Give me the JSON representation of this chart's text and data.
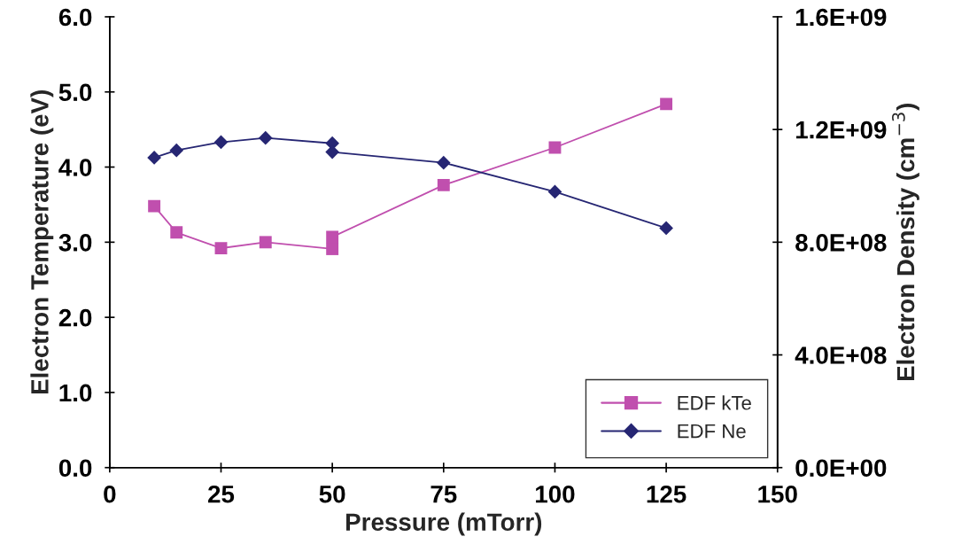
{
  "chart_data": {
    "type": "line",
    "xlabel": "Pressure (mTorr)",
    "ylabel": "Electron Temperature (eV)",
    "y2label": "Electron Density (cm$^{−3}$)",
    "xlim": [
      0,
      150
    ],
    "xticks": [
      0,
      25,
      50,
      75,
      100,
      125,
      150
    ],
    "ylim": [
      0,
      6
    ],
    "yticks": [
      {
        "value": 0,
        "label": "0.0"
      },
      {
        "value": 1,
        "label": "1.0"
      },
      {
        "value": 2,
        "label": "2.0"
      },
      {
        "value": 3,
        "label": "3.0"
      },
      {
        "value": 4,
        "label": "4.0"
      },
      {
        "value": 5,
        "label": "5.0"
      },
      {
        "value": 6,
        "label": "6.0"
      }
    ],
    "y2lim": [
      0,
      1600000000
    ],
    "y2ticks": [
      {
        "value": 0,
        "label": "0.0E+00"
      },
      {
        "value": 400000000,
        "label": "4.0E+08"
      },
      {
        "value": 800000000,
        "label": "8.0E+08"
      },
      {
        "value": 1200000000,
        "label": "1.2E+09"
      },
      {
        "value": 1600000000,
        "label": "1.6E+09"
      }
    ],
    "grid": false,
    "legend": "bottom right",
    "line_style": "solid",
    "series": [
      {
        "name": "EDF kTe",
        "color": "#c04fae",
        "marker": "square",
        "x": [
          10,
          15,
          25,
          35,
          50,
          50,
          75,
          100,
          125
        ],
        "values": [
          3.48,
          3.13,
          2.92,
          3.0,
          2.91,
          3.07,
          3.76,
          4.26,
          4.84
        ]
      },
      {
        "name": "EDF Ne",
        "color": "#262673",
        "marker": "diamond",
        "axis": "y2",
        "x": [
          10,
          15,
          25,
          35,
          50,
          50,
          75,
          100,
          125
        ],
        "values": [
          1100000000,
          1126000000,
          1155000000,
          1170000000,
          1151000000,
          1120000000,
          1082000000,
          979000000,
          850000000
        ]
      }
    ]
  }
}
